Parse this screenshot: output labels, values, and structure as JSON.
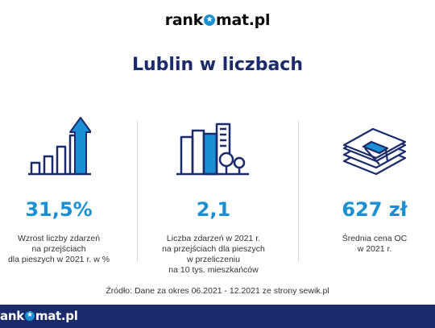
{
  "brand": {
    "logo_pre": "rank",
    "logo_post": "mat.pl",
    "footer_logo_pre": "ank",
    "footer_logo_post": "mat.pl"
  },
  "title": "Lublin w liczbach",
  "stats": [
    {
      "value": "31,5%",
      "description": "Wzrost liczby zdarzeń\nna przejściach\ndla pieszych w 2021 r. w %",
      "icon": "growth-chart-arrow-icon"
    },
    {
      "value": "2,1",
      "description": "Liczba zdarzeń w 2021 r.\nna przejściach dla pieszych\nw przeliczeniu\nna 10 tys. mieszkańców",
      "icon": "city-buildings-icon"
    },
    {
      "value": "627 zł",
      "description": "Średnia cena OC\nw 2021 r.",
      "icon": "money-stack-icon"
    }
  ],
  "source": "Źródło: Dane za okres 06.2021 - 12.2021 ze strony sewik.pl",
  "colors": {
    "navy": "#1b2a6b",
    "accent_blue": "#1a8fd4",
    "icon_stroke": "#1b2a6b"
  }
}
